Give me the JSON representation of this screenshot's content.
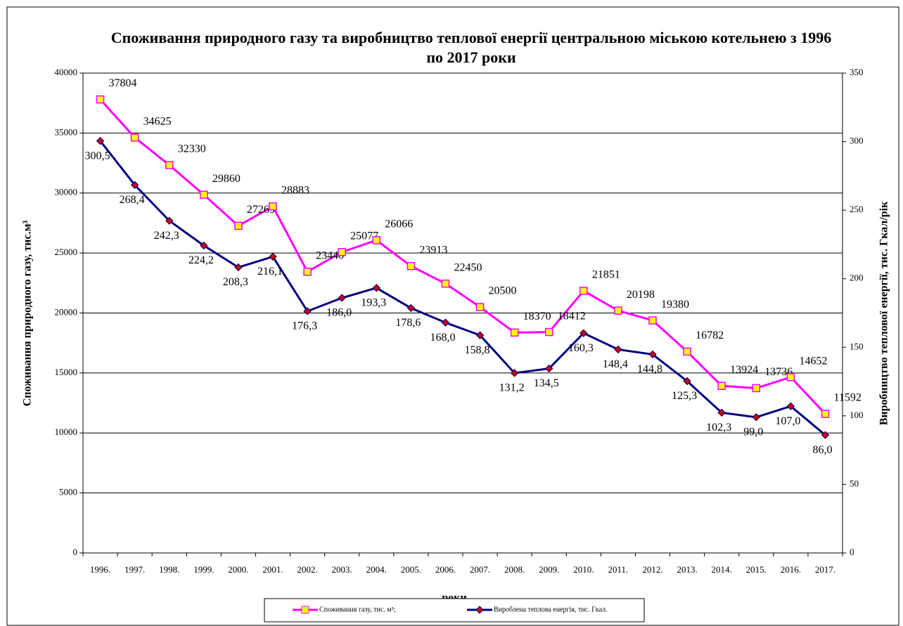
{
  "chart_data": {
    "type": "line",
    "title": "Споживання природного газу та виробництво теплової енергії центральною міською котельнею з 1996 по 2017 роки",
    "x_label": "роки",
    "y_label": "Споживання природного газу, тис.м³",
    "y2_label": "Виробництво теплової енергії, тис. Гкал/рік",
    "categories": [
      "1996.",
      "1997.",
      "1998.",
      "1999.",
      "2000.",
      "2001.",
      "2002.",
      "2003.",
      "2004.",
      "2005.",
      "2006.",
      "2007.",
      "2008.",
      "2009.",
      "2010.",
      "2011.",
      "2012.",
      "2013.",
      "2014.",
      "2015.",
      "2016.",
      "2017."
    ],
    "ylim": [
      0,
      40000
    ],
    "yticks": [
      0,
      5000,
      10000,
      15000,
      20000,
      25000,
      30000,
      35000,
      40000
    ],
    "y2lim": [
      0,
      350
    ],
    "y2ticks": [
      0,
      50,
      100,
      150,
      200,
      250,
      300,
      350
    ],
    "grid": true,
    "legend": "bottom",
    "series": [
      {
        "name": "Споживання газу, тис. м³;",
        "color": "#ff00ff",
        "marker_color": "#ffff00",
        "values": [
          37804,
          34625,
          32330,
          29860,
          27265,
          28883,
          23440,
          25077,
          26066,
          23913,
          22450,
          20500,
          18370,
          18412,
          21851,
          20198,
          19380,
          16782,
          13924,
          13736,
          14652,
          11592
        ]
      },
      {
        "name": "Вироблена теплова енергія, тис. Гкал.",
        "color": "#000080",
        "marker_color": "#cc0000",
        "axis": "y2",
        "values": [
          300.5,
          268.4,
          242.3,
          224.2,
          208.3,
          216.1,
          176.3,
          186.0,
          193.3,
          178.6,
          168.0,
          158.8,
          131.2,
          134.5,
          160.3,
          148.4,
          144.8,
          125.3,
          102.3,
          99.0,
          107.0,
          86.0
        ],
        "value_labels": [
          "300,5",
          "268,4",
          "242,3",
          "224,2",
          "208,3",
          "216,1",
          "176,3",
          "186,0",
          "193,3",
          "178,6",
          "168,0",
          "158,8",
          "131,2",
          "134,5",
          "160,3",
          "148,4",
          "144,8",
          "125,3",
          "102,3",
          "99,0",
          "107,0",
          "86,0"
        ]
      }
    ]
  }
}
